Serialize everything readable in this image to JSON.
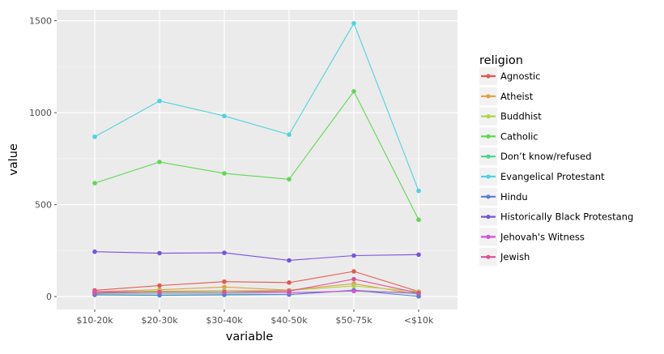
{
  "chart_data": {
    "type": "line",
    "title": "",
    "xlabel": "variable",
    "ylabel": "value",
    "categories": [
      "$10-20k",
      "$20-30k",
      "$30-40k",
      "$40-50k",
      "$50-75k",
      "<$10k"
    ],
    "ylim": [
      -70,
      1560
    ],
    "yticks": [
      0,
      500,
      1000,
      1500
    ],
    "grid": true,
    "legend_title": "religion",
    "legend_position": "right",
    "series": [
      {
        "name": "Agnostic",
        "color": "#e3594b",
        "values": [
          34,
          60,
          81,
          76,
          137,
          27
        ]
      },
      {
        "name": "Atheist",
        "color": "#dfa042",
        "values": [
          27,
          37,
          52,
          35,
          70,
          12
        ]
      },
      {
        "name": "Buddhist",
        "color": "#b3d34a",
        "values": [
          21,
          30,
          34,
          33,
          58,
          27
        ]
      },
      {
        "name": "Catholic",
        "color": "#5fd851",
        "values": [
          617,
          732,
          670,
          638,
          1116,
          418
        ]
      },
      {
        "name": "Don’t know/refused",
        "color": "#46d688",
        "values": [
          14,
          15,
          15,
          11,
          35,
          15
        ]
      },
      {
        "name": "Evangelical Protestant",
        "color": "#4fd3dd",
        "values": [
          869,
          1064,
          982,
          881,
          1486,
          575
        ]
      },
      {
        "name": "Hindu",
        "color": "#5080d9",
        "values": [
          9,
          7,
          9,
          11,
          34,
          1
        ]
      },
      {
        "name": "Historically Black Protestang",
        "color": "#7853dd",
        "values": [
          244,
          236,
          238,
          197,
          223,
          228
        ]
      },
      {
        "name": "Jehovah's Witness",
        "color": "#d44fd8",
        "values": [
          27,
          24,
          24,
          21,
          30,
          20
        ]
      },
      {
        "name": "Jewish",
        "color": "#df4f97",
        "values": [
          19,
          25,
          25,
          30,
          95,
          19
        ]
      }
    ]
  }
}
